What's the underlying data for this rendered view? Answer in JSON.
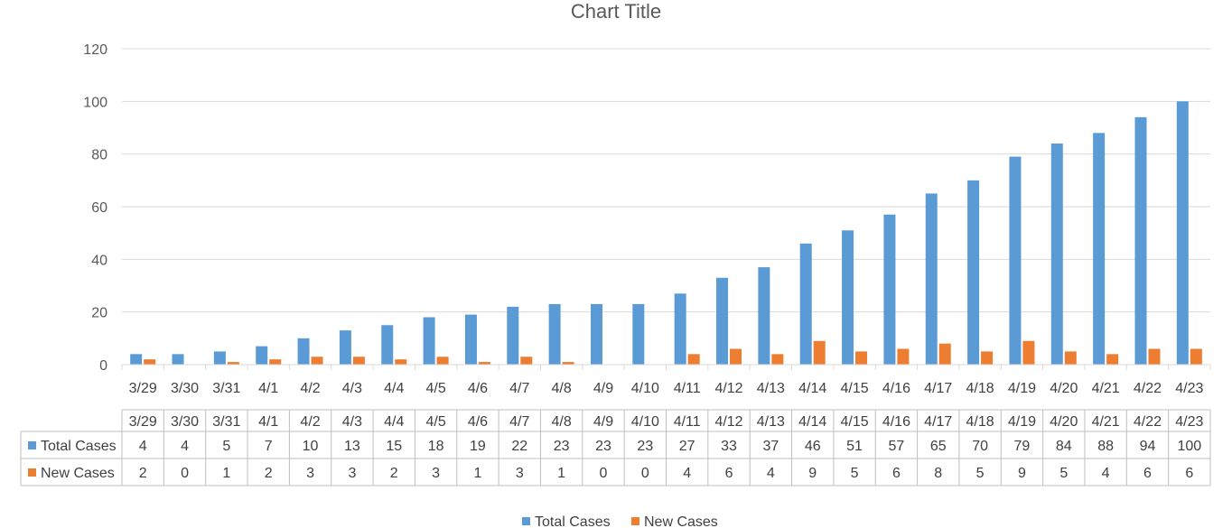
{
  "colors": {
    "total": "#5b9bd5",
    "new": "#ed7d31",
    "grid": "#d9d9d9",
    "table_border": "#bfbfbf",
    "text": "#595959"
  },
  "chart_data": {
    "type": "bar",
    "title": "Chart Title",
    "xlabel": "",
    "ylabel": "",
    "ylim": [
      0,
      120
    ],
    "y_ticks": [
      0,
      20,
      40,
      60,
      80,
      100,
      120
    ],
    "grid": true,
    "legend_position": "bottom",
    "data_table": true,
    "categories": [
      "3/29",
      "3/30",
      "3/31",
      "4/1",
      "4/2",
      "4/3",
      "4/4",
      "4/5",
      "4/6",
      "4/7",
      "4/8",
      "4/9",
      "4/10",
      "4/11",
      "4/12",
      "4/13",
      "4/14",
      "4/15",
      "4/16",
      "4/17",
      "4/18",
      "4/19",
      "4/20",
      "4/21",
      "4/22",
      "4/23"
    ],
    "series": [
      {
        "name": "Total Cases",
        "color": "#5b9bd5",
        "values": [
          4,
          4,
          5,
          7,
          10,
          13,
          15,
          18,
          19,
          22,
          23,
          23,
          23,
          27,
          33,
          37,
          46,
          51,
          57,
          65,
          70,
          79,
          84,
          88,
          94,
          100
        ]
      },
      {
        "name": "New Cases",
        "color": "#ed7d31",
        "values": [
          2,
          0,
          1,
          2,
          3,
          3,
          2,
          3,
          1,
          3,
          1,
          0,
          0,
          4,
          6,
          4,
          9,
          5,
          6,
          8,
          5,
          9,
          5,
          4,
          6,
          6
        ]
      }
    ]
  }
}
